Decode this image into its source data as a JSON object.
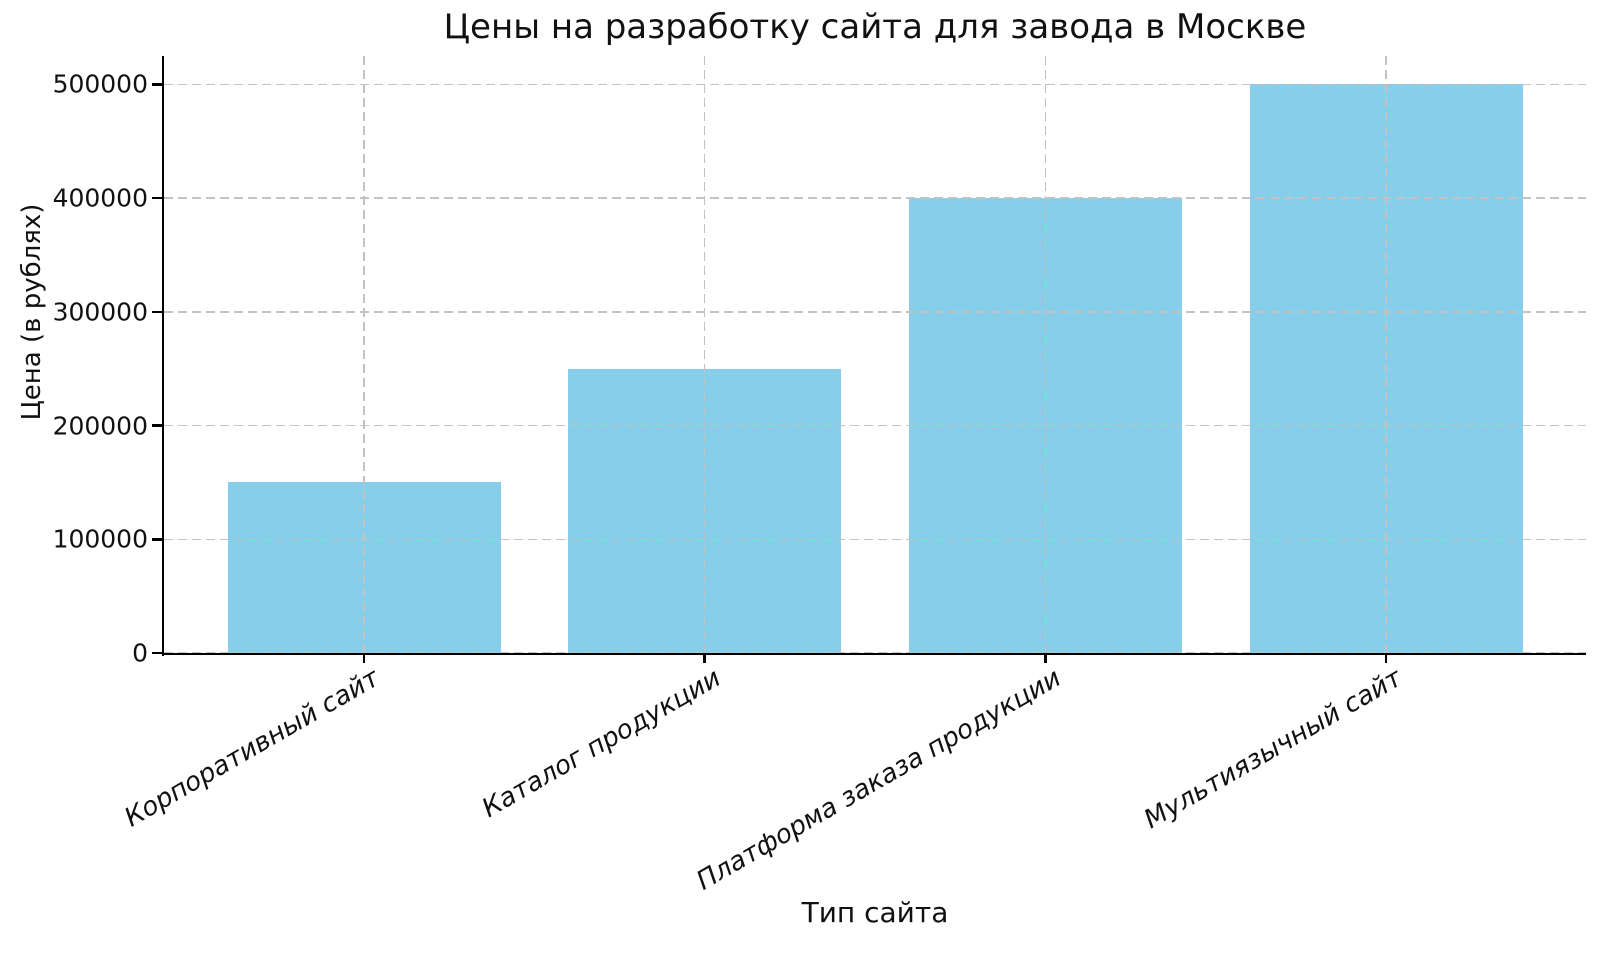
{
  "chart_data": {
    "type": "bar",
    "title": "Цены на разработку сайта для завода в Москве",
    "xlabel": "Тип сайта",
    "ylabel": "Цена (в рублях)",
    "categories": [
      "Корпоративный сайт",
      "Каталог продукции",
      "Платформа заказа продукции",
      "Мультиязычный сайт"
    ],
    "values": [
      150000,
      250000,
      400000,
      500000
    ],
    "yticks": [
      0,
      100000,
      200000,
      300000,
      400000,
      500000
    ],
    "ytick_labels": [
      "0",
      "100000",
      "200000",
      "300000",
      "400000",
      "500000"
    ],
    "ylim": [
      0,
      525000
    ],
    "bar_color": "#87CEEB",
    "grid": true,
    "grid_linestyle": "dashed",
    "grid_color": "#c2c2c2",
    "axis_color": "#000000",
    "text_color": "#111111",
    "background": "#ffffff",
    "legend": "none",
    "x_tick_label_rotation_deg": 30,
    "x_tick_label_style": "italic"
  }
}
